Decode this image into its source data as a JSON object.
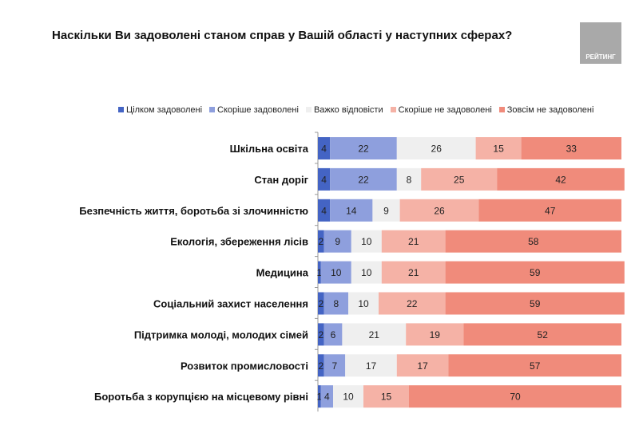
{
  "chart_data": {
    "type": "bar",
    "orientation": "horizontal",
    "stacked": true,
    "title": "Наскільки Ви задоволені станом справ у Вашій області у наступних сферах?",
    "logo_text": "РЕЙТИНГ",
    "legend_position": "top",
    "xlim": [
      0,
      100
    ],
    "grid": false,
    "categories": [
      "Шкільна освіта",
      "Стан доріг",
      "Безпечність життя, боротьба зі злочинністю",
      "Екологія, збереження лісів",
      "Медицина",
      "Соціальний захист населення",
      "Підтримка молоді, молодих сімей",
      "Розвиток промисловості",
      "Боротьба з корупцією на місцевому рівні"
    ],
    "series": [
      {
        "name": "Цілком задоволені",
        "color": "#4464c4",
        "values": [
          4,
          4,
          4,
          2,
          1,
          2,
          2,
          2,
          1
        ]
      },
      {
        "name": "Скоріше задоволені",
        "color": "#8e9fdd",
        "values": [
          22,
          22,
          14,
          9,
          10,
          8,
          6,
          7,
          4
        ]
      },
      {
        "name": "Важко відповісти",
        "color": "#efefef",
        "values": [
          26,
          8,
          9,
          10,
          10,
          10,
          21,
          17,
          10
        ]
      },
      {
        "name": "Скоріше не задоволені",
        "color": "#f5b2a6",
        "values": [
          15,
          25,
          26,
          21,
          21,
          22,
          19,
          17,
          15
        ]
      },
      {
        "name": "Зовсім не задоволені",
        "color": "#f08b7b",
        "values": [
          33,
          42,
          47,
          58,
          59,
          59,
          52,
          57,
          70
        ]
      }
    ]
  }
}
